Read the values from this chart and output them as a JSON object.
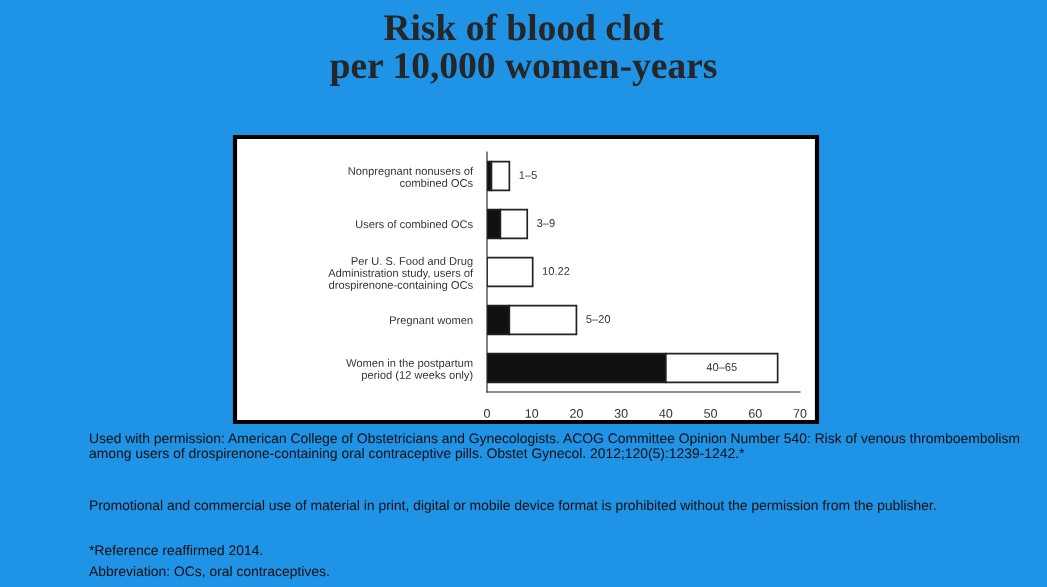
{
  "chart_data": {
    "type": "bar",
    "orientation": "horizontal",
    "stacked": true,
    "title": "Risk of blood clot\nper 10,000 women-years",
    "categories": [
      "Nonpregnant nonusers of\ncombined OCs",
      "Users of combined OCs",
      "Per U. S. Food and Drug\nAdministration study, users of\ndrospirenone-containing OCs",
      "Pregnant women",
      "Women in the postpartum\nperiod (12 weeks only)"
    ],
    "series": [
      {
        "color": "#111111",
        "values": [
          1,
          3,
          0,
          5,
          40
        ]
      },
      {
        "color": "#ffffff",
        "values": [
          4,
          6,
          10.22,
          15,
          25
        ],
        "value_labels": [
          "1–5",
          "3–9",
          "10.22",
          "5–20",
          "40–65"
        ]
      }
    ],
    "xlim": [
      0,
      70
    ],
    "xticks": [
      0,
      10,
      20,
      30,
      40,
      50,
      60,
      70
    ],
    "annotations": [
      "Used with permission: American College of Obstetricians and Gynecologists. ACOG Committee Opinion Number 540: Risk of venous thromboembolism among users of drospirenone-containing oral contraceptive pills. Obstet Gynecol. 2012;120(5):1239-1242.*",
      "Promotional and commercial use of material in print, digital or mobile device format is prohibited without the permission from the publisher.",
      "*Reference reaffirmed 2014.",
      "Abbreviation: OCs, oral contraceptives."
    ]
  }
}
